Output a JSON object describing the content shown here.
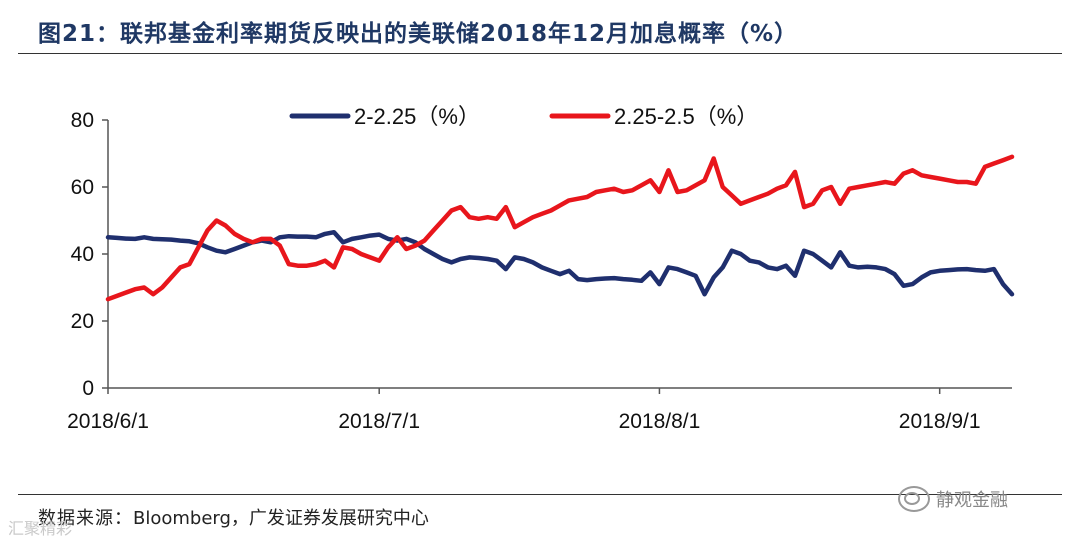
{
  "header": {
    "title": "图21：联邦基金利率期货反映出的美联储2018年12月加息概率（%）"
  },
  "footer": {
    "source_label": "数据来源：",
    "source_text": "Bloomberg，广发证券发展研究中心",
    "watermark": "静观金融",
    "watermark2": "汇聚精彩"
  },
  "chart_data": {
    "type": "line",
    "title": "",
    "xlabel": "",
    "ylabel": "",
    "ylim": [
      0,
      80
    ],
    "yticks": [
      0,
      20,
      40,
      60,
      80
    ],
    "xlim": [
      0,
      100
    ],
    "xticks": [
      {
        "pos": 0,
        "label": "2018/6/1"
      },
      {
        "pos": 30,
        "label": "2018/7/1"
      },
      {
        "pos": 61,
        "label": "2018/8/1"
      },
      {
        "pos": 92,
        "label": "2018/9/1"
      }
    ],
    "x_unit": "days since 2018/6/1",
    "legend_position": "top",
    "series": [
      {
        "name": "2-2.25（%）",
        "color": "#1f2f6e",
        "x": [
          0,
          1,
          2,
          3,
          4,
          5,
          6,
          7,
          8,
          9,
          10,
          11,
          12,
          13,
          14,
          15,
          16,
          17,
          18,
          19,
          20,
          21,
          22,
          23,
          24,
          25,
          26,
          27,
          28,
          29,
          30,
          31,
          32,
          33,
          34,
          35,
          36,
          37,
          38,
          39,
          40,
          41,
          42,
          43,
          44,
          45,
          46,
          47,
          48,
          49,
          50,
          51,
          52,
          53,
          54,
          55,
          56,
          57,
          58,
          59,
          60,
          61,
          62,
          63,
          64,
          65,
          66,
          67,
          68,
          69,
          70,
          71,
          72,
          73,
          74,
          75,
          76,
          77,
          78,
          79,
          80,
          81,
          82,
          83,
          84,
          85,
          86,
          87,
          88,
          89,
          90,
          91,
          92,
          93,
          94,
          95,
          96,
          97,
          98,
          99,
          100
        ],
        "values": [
          45,
          44.8,
          44.6,
          44.5,
          45,
          44.5,
          44.4,
          44.3,
          44,
          43.8,
          43.2,
          42,
          41,
          40.5,
          41.5,
          42.5,
          43.5,
          44,
          43.5,
          45,
          45.3,
          45.2,
          45.2,
          45,
          46,
          46.5,
          43.5,
          44.5,
          45,
          45.5,
          45.8,
          44.5,
          44,
          44.5,
          43.5,
          41.5,
          40,
          38.5,
          37.5,
          38.5,
          39,
          38.8,
          38.5,
          38,
          35.5,
          39,
          38.5,
          37.5,
          36,
          35,
          34,
          35,
          32.5,
          32.2,
          32.5,
          32.7,
          32.8,
          32.5,
          32.3,
          32,
          34.5,
          31,
          36,
          35.5,
          34.5,
          33.5,
          28,
          33,
          36,
          41,
          40,
          38,
          37.5,
          36,
          35.5,
          36.5,
          33.5,
          41,
          40,
          38,
          36,
          40.5,
          36.5,
          36,
          36.2,
          36,
          35.5,
          34,
          30.5,
          31,
          33,
          34.5,
          35,
          35.2,
          35.4,
          35.5,
          35.2,
          35,
          35.5,
          31,
          28
        ]
      },
      {
        "name": "2.25-2.5（%）",
        "color": "#e8161c",
        "x": [
          0,
          1,
          2,
          3,
          4,
          5,
          6,
          7,
          8,
          9,
          10,
          11,
          12,
          13,
          14,
          15,
          16,
          17,
          18,
          19,
          20,
          21,
          22,
          23,
          24,
          25,
          26,
          27,
          28,
          29,
          30,
          31,
          32,
          33,
          34,
          35,
          36,
          37,
          38,
          39,
          40,
          41,
          42,
          43,
          44,
          45,
          46,
          47,
          48,
          49,
          50,
          51,
          52,
          53,
          54,
          55,
          56,
          57,
          58,
          59,
          60,
          61,
          62,
          63,
          64,
          65,
          66,
          67,
          68,
          69,
          70,
          71,
          72,
          73,
          74,
          75,
          76,
          77,
          78,
          79,
          80,
          81,
          82,
          83,
          84,
          85,
          86,
          87,
          88,
          89,
          90,
          91,
          92,
          93,
          94,
          95,
          96,
          97,
          98,
          99,
          100
        ],
        "values": [
          26.5,
          27.5,
          28.5,
          29.5,
          30,
          28,
          30,
          33,
          36,
          37,
          42,
          47,
          50,
          48.5,
          46,
          44.5,
          43.5,
          44.5,
          44.5,
          42.5,
          37,
          36.5,
          36.5,
          37,
          38,
          36,
          42,
          41.5,
          40,
          39,
          38,
          42,
          45,
          41.5,
          42.5,
          44,
          47,
          50,
          53,
          54,
          51,
          50.5,
          51,
          50.5,
          54,
          48,
          49.5,
          51,
          52,
          53,
          54.5,
          56,
          56.5,
          57,
          58.5,
          59,
          59.5,
          58.5,
          59,
          60.5,
          62,
          58.5,
          65,
          58.5,
          59,
          60.5,
          62,
          68.5,
          60,
          57.5,
          55,
          56,
          57,
          58,
          59.5,
          60.5,
          64.5,
          54,
          55,
          59,
          60,
          55,
          59.5,
          60,
          60.5,
          61,
          61.5,
          61,
          64,
          65,
          63.5,
          63,
          62.5,
          62,
          61.5,
          61.5,
          61,
          66,
          67,
          68,
          69
        ]
      }
    ]
  }
}
